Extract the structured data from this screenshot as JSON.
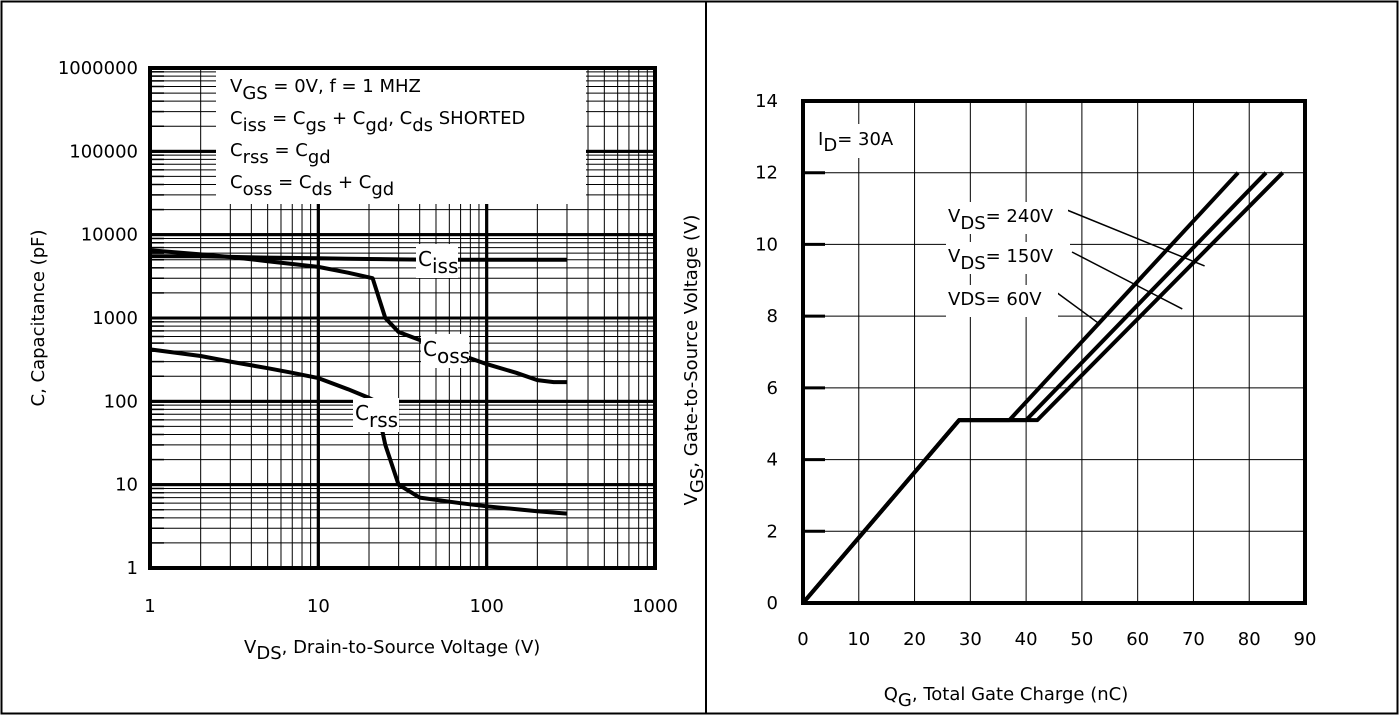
{
  "chart_data": [
    {
      "type": "line",
      "x_scale": "log",
      "y_scale": "log",
      "xlim": [
        1,
        1000
      ],
      "ylim": [
        1,
        1000000
      ],
      "x_ticks": [
        "1",
        "10",
        "100",
        "1000"
      ],
      "y_ticks": [
        "1",
        "10",
        "100",
        "1000",
        "10000",
        "100000",
        "1000000"
      ],
      "xlabel": {
        "main": "V",
        "sub": "DS",
        "rest": ", Drain-to-Source Voltage (V)"
      },
      "ylabel": "C, Capacitance (pF)",
      "grid": true,
      "legend_box": [
        [
          {
            "t": "V"
          },
          {
            "t": "GS",
            "sub": true
          },
          {
            "t": "  = 0V,     f = 1 MHZ"
          }
        ],
        [
          {
            "t": "C"
          },
          {
            "t": "iss",
            "sub": true
          },
          {
            "t": "  = C"
          },
          {
            "t": "gs",
            "sub": true
          },
          {
            "t": " + C"
          },
          {
            "t": "gd",
            "sub": true
          },
          {
            "t": ",  C"
          },
          {
            "t": "ds",
            "sub": true
          },
          {
            "t": " SHORTED"
          }
        ],
        [
          {
            "t": "C"
          },
          {
            "t": "rss",
            "sub": true
          },
          {
            "t": "   = C"
          },
          {
            "t": "gd",
            "sub": true
          }
        ],
        [
          {
            "t": "C"
          },
          {
            "t": "oss",
            "sub": true
          },
          {
            "t": "  = C"
          },
          {
            "t": "ds",
            "sub": true
          },
          {
            "t": " + C"
          },
          {
            "t": "gd",
            "sub": true
          }
        ]
      ],
      "series": [
        {
          "name": "Ciss",
          "label": {
            "main": "C",
            "sub": "iss"
          },
          "x": [
            1,
            2,
            5,
            10,
            15,
            20,
            30,
            50,
            100,
            200,
            300
          ],
          "y": [
            5500,
            5500,
            5300,
            5200,
            5150,
            5100,
            5050,
            5000,
            5000,
            5000,
            5000
          ]
        },
        {
          "name": "Coss",
          "label": {
            "main": "C",
            "sub": "oss"
          },
          "x": [
            1,
            2,
            3,
            5,
            10,
            15,
            21,
            25,
            30,
            50,
            100,
            150,
            200,
            250,
            300
          ],
          "y": [
            6500,
            5800,
            5400,
            4800,
            4100,
            3500,
            3000,
            1000,
            680,
            460,
            280,
            220,
            180,
            170,
            170
          ]
        },
        {
          "name": "Crss",
          "label": {
            "main": "C",
            "sub": "rss"
          },
          "x": [
            1,
            2,
            3,
            5,
            7,
            10,
            15,
            20,
            22,
            25,
            30,
            40,
            70,
            100,
            200,
            300
          ],
          "y": [
            420,
            350,
            300,
            250,
            220,
            190,
            140,
            110,
            100,
            30,
            10,
            7,
            6,
            5.5,
            4.8,
            4.5
          ]
        }
      ]
    },
    {
      "type": "line",
      "xlim": [
        0,
        90
      ],
      "ylim": [
        0,
        14
      ],
      "x_ticks": [
        "0",
        "10",
        "20",
        "30",
        "40",
        "50",
        "60",
        "70",
        "80",
        "90"
      ],
      "y_ticks": [
        "0",
        "2",
        "4",
        "6",
        "8",
        "10",
        "12",
        "14"
      ],
      "xlabel": {
        "main": "Q",
        "sub": "G",
        "rest": ",  Total Gate Charge (nC)"
      },
      "ylabel": {
        "main": "V",
        "sub": "GS",
        "rest": ", Gate-to-Source Voltage (V)"
      },
      "grid": true,
      "annotation": {
        "main": "I",
        "sub": "D",
        "rest": "= 30A"
      },
      "series": [
        {
          "name": "VDS = 240V",
          "label": {
            "main": "V",
            "sub": "DS",
            "rest": "= 240V"
          },
          "x": [
            0,
            28,
            42,
            86
          ],
          "y": [
            0,
            5.1,
            5.1,
            12
          ]
        },
        {
          "name": "VDS = 150V",
          "label": {
            "main": "V",
            "sub": "DS",
            "rest": "= 150V"
          },
          "x": [
            0,
            28,
            40,
            83
          ],
          "y": [
            0,
            5.1,
            5.1,
            12
          ]
        },
        {
          "name": "VDS = 60V",
          "label": {
            "main": "VDS= 60V"
          },
          "x": [
            0,
            28,
            37,
            78
          ],
          "y": [
            0,
            5.1,
            5.1,
            12
          ]
        }
      ]
    }
  ]
}
